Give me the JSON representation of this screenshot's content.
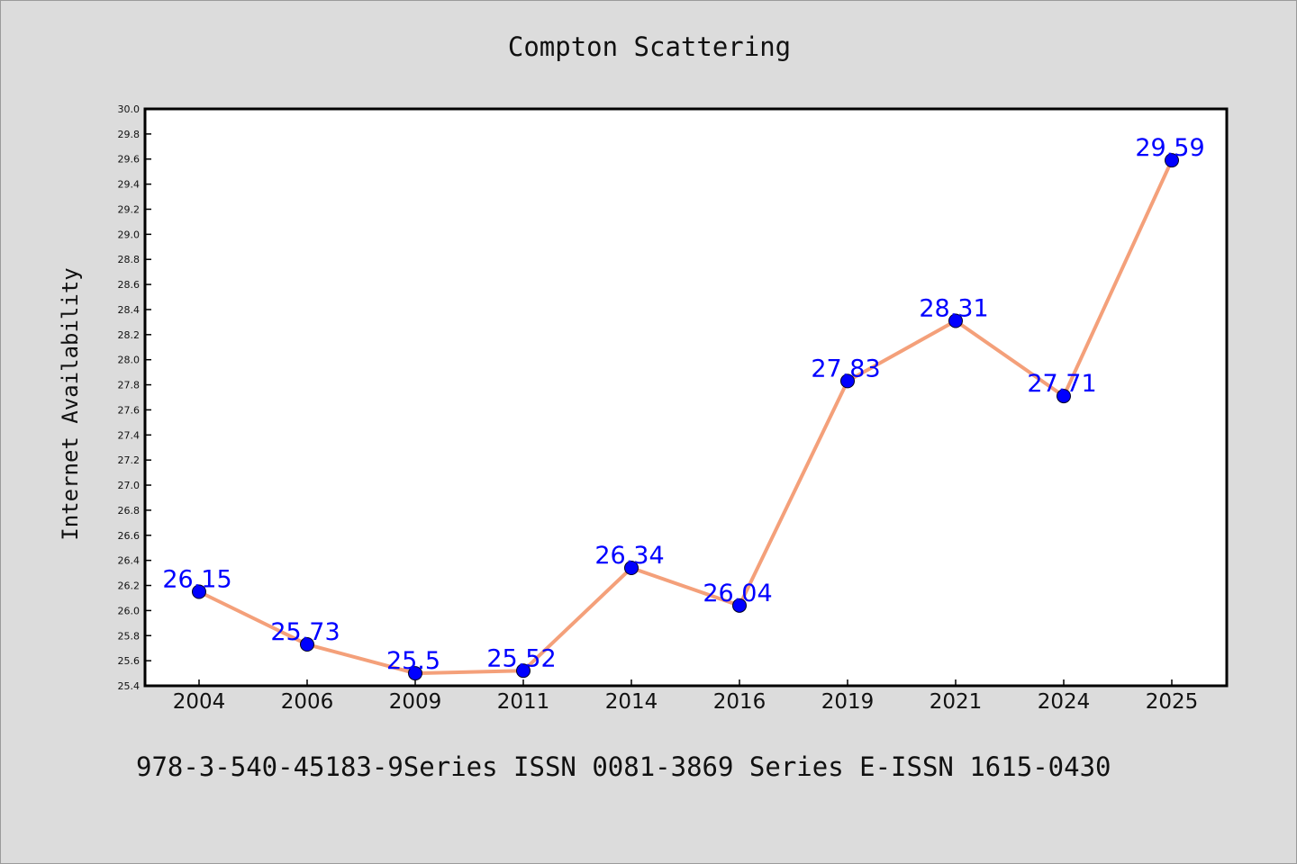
{
  "chart_data": {
    "type": "line",
    "title": "Compton Scattering",
    "xlabel": "",
    "ylabel": "Internet Availability",
    "categories": [
      "2004",
      "2006",
      "2009",
      "2011",
      "2014",
      "2016",
      "2019",
      "2021",
      "2024",
      "2025"
    ],
    "series": [
      {
        "values": [
          26.15,
          25.73,
          25.5,
          25.52,
          26.34,
          26.04,
          27.83,
          28.31,
          27.71,
          29.59
        ],
        "line_color": "#f4a07a",
        "marker_color": "#0000ff"
      }
    ],
    "data_labels": [
      "26.15",
      "25.73",
      "25.5",
      "25.52",
      "26.34",
      "26.04",
      "27.83",
      "28.31",
      "27.71",
      "29.59"
    ],
    "y_ticks": [
      "25.4",
      "25.6",
      "25.8",
      "26.0",
      "26.2",
      "26.4",
      "26.6",
      "26.8",
      "27.0",
      "27.2",
      "27.4",
      "27.6",
      "27.8",
      "28.0",
      "28.2",
      "28.4",
      "28.6",
      "28.8",
      "29.0",
      "29.2",
      "29.4",
      "29.6",
      "29.8",
      "30.0"
    ],
    "ylim": [
      25.4,
      30.0
    ],
    "grid": false,
    "legend": "none"
  },
  "footer": "978-3-540-45183-9Series ISSN 0081-3869 Series E-ISSN 1615-0430",
  "colors": {
    "background": "#dcdcdc",
    "plot_background": "#ffffff",
    "line": "#f4a07a",
    "marker": "#0000ff",
    "data_label": "#0000ff"
  }
}
